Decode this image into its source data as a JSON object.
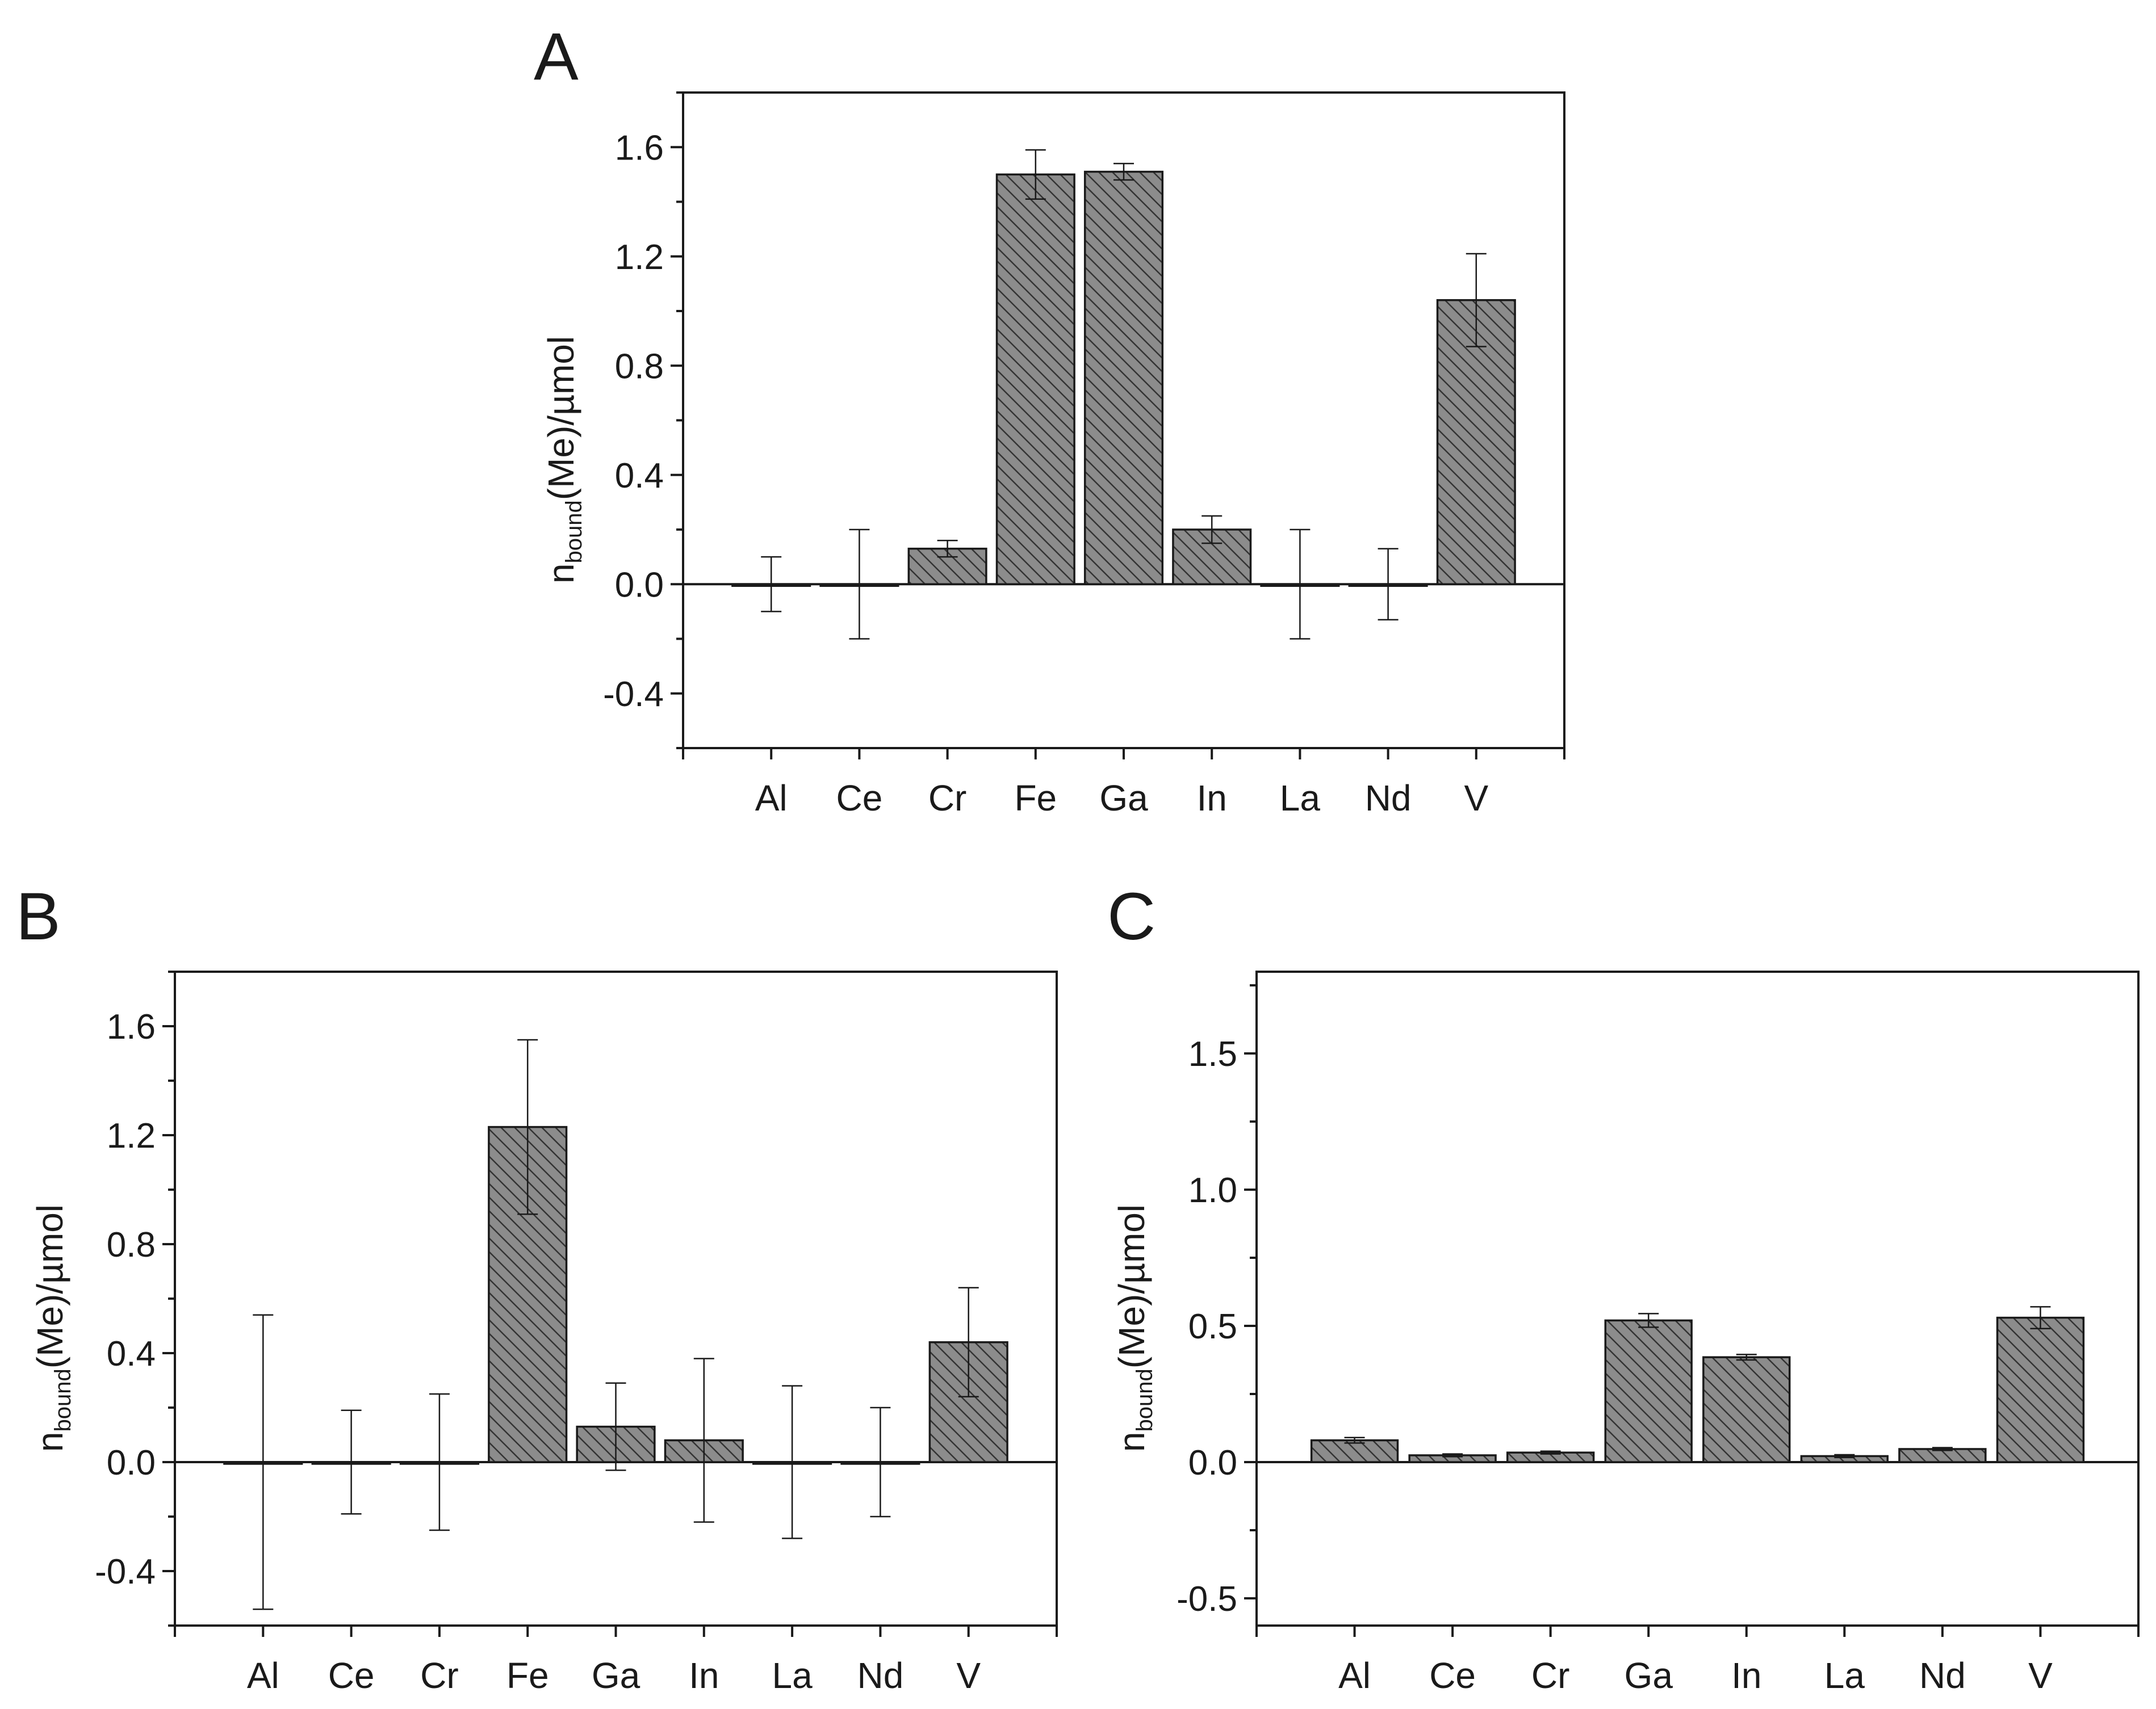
{
  "figure": {
    "colors": {
      "bar_fill": "#8c8c8c",
      "hatch_line": "#333333",
      "axis": "#1a1a1a",
      "background": "#ffffff"
    }
  },
  "chart_data": [
    {
      "panel": "A",
      "type": "bar",
      "ylabel_main": "n",
      "ylabel_sub": "bound",
      "ylabel_tail": "(Me)/µmol",
      "xlabel": "",
      "ylim": [
        -0.6,
        1.8
      ],
      "yticks": [
        -0.4,
        0.0,
        0.4,
        0.8,
        1.2,
        1.6
      ],
      "ytick_labels": [
        "-0.4",
        "0.0",
        "0.4",
        "0.8",
        "1.2",
        "1.6"
      ],
      "categories": [
        "Al",
        "Ce",
        "Cr",
        "Fe",
        "Ga",
        "In",
        "La",
        "Nd",
        "V"
      ],
      "values": [
        0.0,
        0.0,
        0.13,
        1.5,
        1.51,
        0.2,
        0.0,
        0.0,
        1.04
      ],
      "errors": [
        0.1,
        0.2,
        0.03,
        0.09,
        0.03,
        0.05,
        0.2,
        0.13,
        0.17
      ]
    },
    {
      "panel": "B",
      "type": "bar",
      "ylabel_main": "n",
      "ylabel_sub": "bound",
      "ylabel_tail": "(Me)/µmol",
      "xlabel": "",
      "ylim": [
        -0.6,
        1.8
      ],
      "yticks": [
        -0.4,
        0.0,
        0.4,
        0.8,
        1.2,
        1.6
      ],
      "ytick_labels": [
        "-0.4",
        "0.0",
        "0.4",
        "0.8",
        "1.2",
        "1.6"
      ],
      "categories": [
        "Al",
        "Ce",
        "Cr",
        "Fe",
        "Ga",
        "In",
        "La",
        "Nd",
        "V"
      ],
      "values": [
        0.0,
        0.0,
        0.0,
        1.23,
        0.13,
        0.08,
        0.0,
        0.0,
        0.44
      ],
      "errors": [
        0.54,
        0.19,
        0.25,
        0.32,
        0.16,
        0.3,
        0.28,
        0.2,
        0.2
      ]
    },
    {
      "panel": "C",
      "type": "bar",
      "ylabel_main": "n",
      "ylabel_sub": "bound",
      "ylabel_tail": "(Me)/µmol",
      "xlabel": "",
      "ylim": [
        -0.6,
        1.8
      ],
      "yticks": [
        -0.5,
        0.0,
        0.5,
        1.0,
        1.5
      ],
      "ytick_labels": [
        "-0.5",
        "0.0",
        "0.5",
        "1.0",
        "1.5"
      ],
      "categories": [
        "Al",
        "Ce",
        "Cr",
        "Ga",
        "In",
        "La",
        "Nd",
        "V"
      ],
      "values": [
        0.08,
        0.025,
        0.035,
        0.52,
        0.385,
        0.022,
        0.048,
        0.53
      ],
      "errors": [
        0.01,
        0.005,
        0.005,
        0.025,
        0.01,
        0.005,
        0.005,
        0.04
      ]
    }
  ]
}
